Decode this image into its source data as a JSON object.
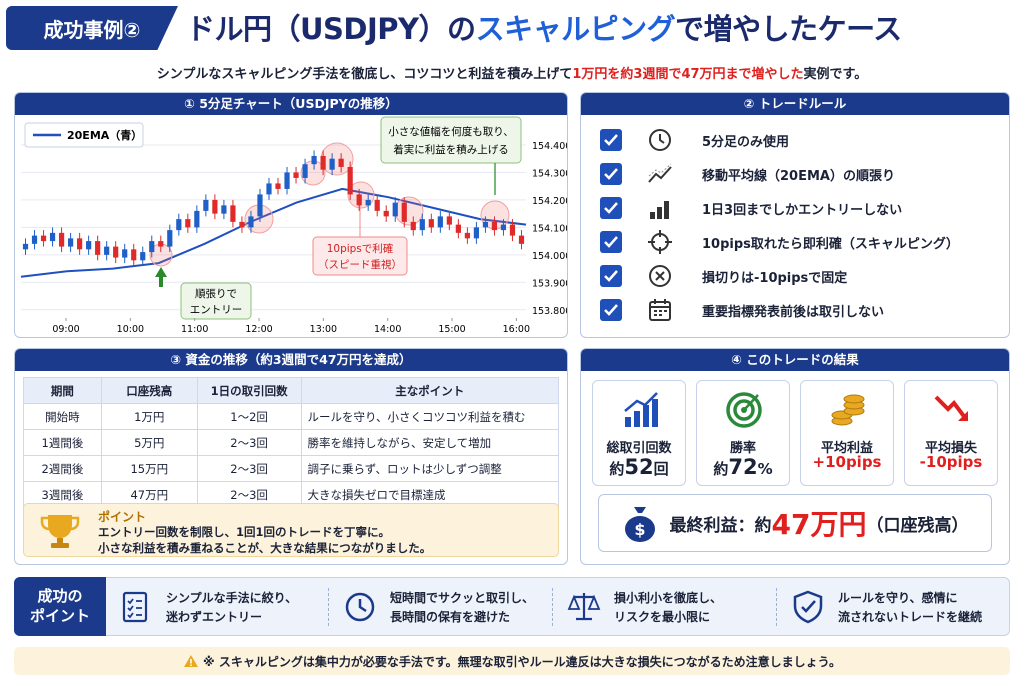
{
  "header": {
    "badge": "成功事例②",
    "title": [
      "ドル円（USDJPY）の",
      "スキャルピング",
      "で増やしたケース"
    ],
    "subtitle": [
      "シンプルなスキャルピング手法を徹底し、コツコツと利益を積み上げて",
      "1万円を約3週間で47万円まで増やした",
      "実例です。"
    ]
  },
  "chart_panel": {
    "title": "① 5分足チャート（USDJPYの推移）",
    "chart_data": {
      "type": "candlestick",
      "legend": "20EMA（青）",
      "up_color": "#1f5fc8",
      "down_color": "#e02a2a",
      "ema_color": "#1f4fc0",
      "open": [
        154.02,
        154.04,
        154.07,
        154.05,
        154.08,
        154.03,
        154.06,
        154.02,
        154.05,
        154.0,
        154.03,
        153.99,
        154.02,
        153.98,
        154.01,
        154.05,
        154.03,
        154.09,
        154.13,
        154.1,
        154.16,
        154.2,
        154.15,
        154.18,
        154.12,
        154.1,
        154.14,
        154.22,
        154.26,
        154.24,
        154.3,
        154.28,
        154.33,
        154.36,
        154.31,
        154.35,
        154.32,
        154.22,
        154.18,
        154.2,
        154.16,
        154.14,
        154.19,
        154.12,
        154.09,
        154.13,
        154.1,
        154.14,
        154.11,
        154.08,
        154.06,
        154.1,
        154.12,
        154.09,
        154.11,
        154.07
      ],
      "close": [
        154.04,
        154.07,
        154.05,
        154.08,
        154.03,
        154.06,
        154.02,
        154.05,
        154.0,
        154.03,
        153.99,
        154.02,
        153.98,
        154.01,
        154.05,
        154.03,
        154.09,
        154.13,
        154.1,
        154.16,
        154.2,
        154.15,
        154.18,
        154.12,
        154.1,
        154.14,
        154.22,
        154.26,
        154.24,
        154.3,
        154.28,
        154.33,
        154.36,
        154.31,
        154.35,
        154.32,
        154.22,
        154.18,
        154.2,
        154.16,
        154.14,
        154.19,
        154.12,
        154.09,
        154.13,
        154.1,
        154.14,
        154.11,
        154.08,
        154.06,
        154.1,
        154.12,
        154.09,
        154.11,
        154.07,
        154.04
      ],
      "high": [
        154.06,
        154.09,
        154.09,
        154.1,
        154.1,
        154.08,
        154.08,
        154.07,
        154.07,
        154.05,
        154.05,
        154.04,
        154.04,
        154.03,
        154.07,
        154.07,
        154.11,
        154.15,
        154.15,
        154.18,
        154.22,
        154.22,
        154.2,
        154.2,
        154.14,
        154.16,
        154.24,
        154.28,
        154.28,
        154.32,
        154.32,
        154.35,
        154.38,
        154.38,
        154.37,
        154.37,
        154.34,
        154.24,
        154.22,
        154.22,
        154.18,
        154.21,
        154.21,
        154.14,
        154.15,
        154.15,
        154.16,
        154.16,
        154.13,
        154.1,
        154.12,
        154.14,
        154.14,
        154.13,
        154.13,
        154.09
      ],
      "low": [
        154.0,
        154.02,
        154.03,
        154.03,
        154.01,
        154.01,
        154.0,
        154.0,
        153.98,
        153.98,
        153.97,
        153.97,
        153.96,
        153.96,
        153.99,
        154.01,
        154.01,
        154.07,
        154.08,
        154.08,
        154.14,
        154.13,
        154.13,
        154.1,
        154.08,
        154.08,
        154.12,
        154.2,
        154.22,
        154.22,
        154.26,
        154.26,
        154.31,
        154.29,
        154.29,
        154.3,
        154.2,
        154.16,
        154.16,
        154.14,
        154.12,
        154.12,
        154.1,
        154.07,
        154.07,
        154.08,
        154.08,
        154.09,
        154.06,
        154.04,
        154.04,
        154.08,
        154.07,
        154.07,
        154.05,
        154.02
      ],
      "ema": [
        153.92,
        153.94,
        153.95,
        153.97,
        154.04,
        154.12,
        154.19,
        154.24,
        154.21,
        154.17,
        154.13,
        154.11
      ],
      "xlim": [
        8.3,
        16.15
      ],
      "xticks": [
        {
          "value": 9,
          "label": "09:00"
        },
        {
          "value": 10,
          "label": "10:00"
        },
        {
          "value": 11,
          "label": "11:00"
        },
        {
          "value": 12,
          "label": "12:00"
        },
        {
          "value": 13,
          "label": "13:00"
        },
        {
          "value": 14,
          "label": "14:00"
        },
        {
          "value": 15,
          "label": "15:00"
        },
        {
          "value": 16,
          "label": "16:00"
        }
      ],
      "ylim": [
        153.77,
        154.48
      ],
      "yticks": [
        {
          "value": 153.8,
          "label": "153.800"
        },
        {
          "value": 153.9,
          "label": "153.900"
        },
        {
          "value": 154,
          "label": "154.000"
        },
        {
          "value": 154.1,
          "label": "154.100"
        },
        {
          "value": 154.2,
          "label": "154.200"
        },
        {
          "value": 154.3,
          "label": "154.300"
        },
        {
          "value": 154.4,
          "label": "154.400"
        }
      ],
      "annotations": [
        [
          "小さな値幅を何度も取り、",
          "着実に利益を積み上げる"
        ],
        [
          "10pipsで利確",
          "（スピード重視）"
        ],
        [
          "順張りで",
          "エントリー"
        ]
      ]
    }
  },
  "rules_panel": {
    "title": "② トレードルール",
    "rules": [
      "5分足のみ使用",
      "移動平均線（20EMA）の順張り",
      "1日3回までしかエントリーしない",
      "10pips取れたら即利確（スキャルピング）",
      "損切りは-10pipsで固定",
      "重要指標発表前後は取引しない"
    ]
  },
  "table_panel": {
    "title": "③ 資金の推移（約3週間で47万円を達成）",
    "columns": [
      "期間",
      "口座残高",
      "1日の取引回数",
      "主なポイント"
    ],
    "rows": [
      [
        "開始時",
        "1万円",
        "1〜2回",
        "ルールを守り、小さくコツコツ利益を積む"
      ],
      [
        "1週間後",
        "5万円",
        "2〜3回",
        "勝率を維持しながら、安定して増加"
      ],
      [
        "2週間後",
        "15万円",
        "2〜3回",
        "調子に乗らず、ロットは少しずつ調整"
      ],
      [
        "3週間後",
        "47万円",
        "2〜3回",
        "大きな損失ゼロで目標達成"
      ]
    ],
    "point": {
      "title": "ポイント",
      "lines": [
        "エントリー回数を制限し、1回1回のトレードを丁寧に。",
        "小さな利益を積み重ねることが、大きな結果につながりました。"
      ]
    }
  },
  "result_panel": {
    "title": "④ このトレードの結果",
    "cards": [
      {
        "label": "総取引回数",
        "pre": "約",
        "num": 52,
        "post": "回"
      },
      {
        "label": "勝率",
        "pre": "約",
        "num": 72,
        "post": "%"
      },
      {
        "label": "平均利益",
        "value": "+10pips"
      },
      {
        "label": "平均損失",
        "value": "-10pips"
      }
    ],
    "final": {
      "pre": "最終利益：約",
      "num": "47万円",
      "post": "（口座残高）"
    }
  },
  "points_bar": {
    "label": [
      "成功の",
      "ポイント"
    ],
    "items": [
      [
        "シンプルな手法に絞り、",
        "迷わずエントリー"
      ],
      [
        "短時間でサクッと取引し、",
        "長時間の保有を避けた"
      ],
      [
        "損小利小を徹底し、",
        "リスクを最小限に"
      ],
      [
        "ルールを守り、感情に",
        "流されないトレードを継続"
      ]
    ]
  },
  "footer": {
    "note": "※ スキャルピングは集中力が必要な手法です。無理な取引やルール違反は大きな損失につながるため注意しましょう。"
  }
}
